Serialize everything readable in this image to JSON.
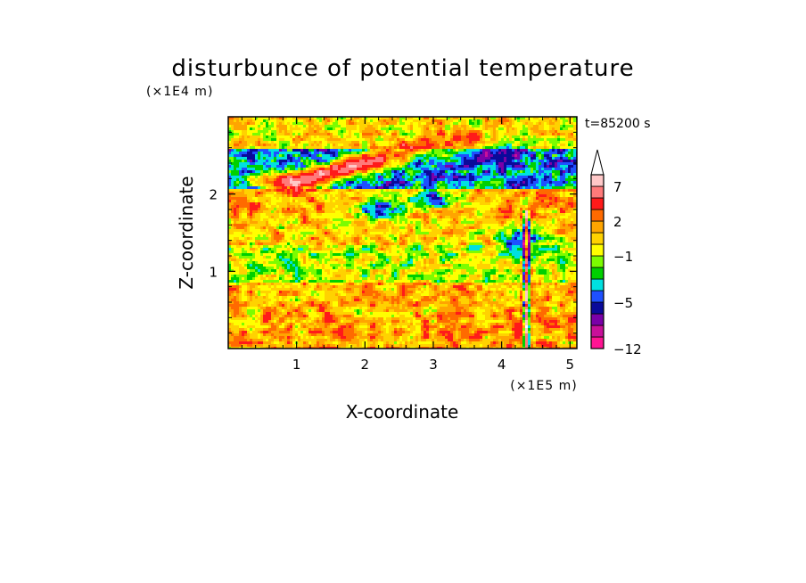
{
  "chart_data": {
    "type": "heatmap",
    "title": "disturbunce of potential temperature",
    "xlabel": "X-coordinate",
    "ylabel": "Z-coordinate",
    "x_scale_label": "(×1E5 m)",
    "y_scale_label": "(×1E4 m)",
    "time_label": "t=85200 s",
    "xlim": [
      0,
      5.1
    ],
    "ylim": [
      0,
      3.0
    ],
    "x_ticks": [
      "1",
      "2",
      "3",
      "4",
      "5"
    ],
    "y_ticks": [
      "1",
      "2"
    ],
    "x_tick_values": [
      1,
      2,
      3,
      4,
      5
    ],
    "y_tick_values": [
      1,
      2
    ],
    "colorbar": {
      "labels": [
        "7",
        "2",
        "−1",
        "−5",
        "−12"
      ],
      "label_values": [
        7,
        2,
        -1,
        -5,
        -12
      ],
      "levels": [
        -12,
        -10,
        -8,
        -6,
        -5,
        -4,
        -3,
        -2,
        -1,
        0,
        1,
        2,
        3,
        5,
        7,
        9
      ],
      "colors": [
        "#ff1493",
        "#c8109a",
        "#7a00a8",
        "#0a0a9a",
        "#1e50ff",
        "#00e0e0",
        "#00d000",
        "#7cfc00",
        "#ffff00",
        "#ffd200",
        "#ffa500",
        "#ff6a00",
        "#ff1a1a",
        "#ff7a7a",
        "#ffc8c8"
      ],
      "over_color": "#ffffff"
    },
    "field_features": [
      {
        "kind": "band",
        "z_min": 0.0,
        "z_max": 0.45,
        "value": 1.5
      },
      {
        "kind": "band",
        "z_min": 0.45,
        "z_max": 0.85,
        "value": 1.0
      },
      {
        "kind": "band",
        "z_min": 0.85,
        "z_max": 1.35,
        "value": -1.0
      },
      {
        "kind": "band",
        "z_min": 1.35,
        "z_max": 1.7,
        "value": 0.5
      },
      {
        "kind": "band",
        "z_min": 1.7,
        "z_max": 2.05,
        "value": 1.2
      },
      {
        "kind": "band",
        "z_min": 2.05,
        "z_max": 2.6,
        "value": -4.0
      },
      {
        "kind": "band",
        "z_min": 2.6,
        "z_max": 3.0,
        "value": 0.0
      },
      {
        "kind": "warm_streak",
        "x_start": 1.0,
        "z_start": 2.15,
        "x_end": 3.2,
        "z_end": 2.7,
        "value": 8.0
      },
      {
        "kind": "cold_patch",
        "x": 2.2,
        "z": 1.8,
        "value": -5.5
      },
      {
        "kind": "cold_patch",
        "x": 3.0,
        "z": 1.95,
        "value": -5.5
      },
      {
        "kind": "cold_patch",
        "x": 4.3,
        "z": 1.4,
        "value": -6.0
      },
      {
        "kind": "cold_patch",
        "x": 4.0,
        "z": 2.5,
        "value": -7.5
      },
      {
        "kind": "wave_column",
        "x": 4.35,
        "z_min": 0.0,
        "z_max": 1.8
      }
    ]
  }
}
